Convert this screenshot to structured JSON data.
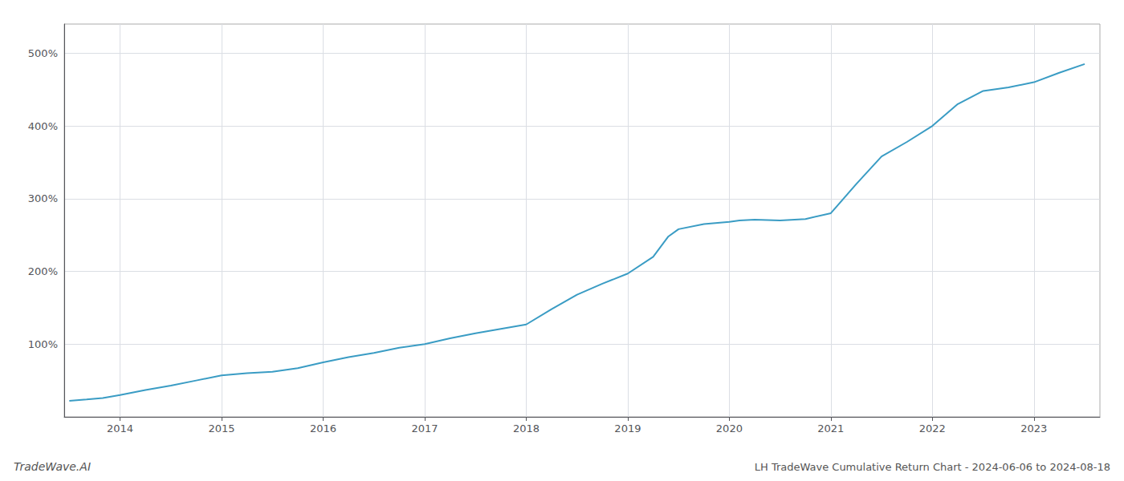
{
  "chart_data": {
    "type": "line",
    "title": "LH TradeWave Cumulative Return Chart - 2024-06-06 to 2024-08-18",
    "annotations": [
      {
        "text": "TradeWave.AI"
      }
    ],
    "x": [
      2013.5,
      2013.67,
      2013.83,
      2014.0,
      2014.25,
      2014.5,
      2014.75,
      2015.0,
      2015.25,
      2015.5,
      2015.75,
      2016.0,
      2016.25,
      2016.5,
      2016.75,
      2017.0,
      2017.25,
      2017.5,
      2017.75,
      2018.0,
      2018.25,
      2018.5,
      2018.75,
      2019.0,
      2019.25,
      2019.4,
      2019.5,
      2019.75,
      2020.0,
      2020.1,
      2020.25,
      2020.5,
      2020.75,
      2021.0,
      2021.25,
      2021.5,
      2021.75,
      2022.0,
      2022.25,
      2022.5,
      2022.75,
      2023.0,
      2023.25,
      2023.5
    ],
    "values": [
      22,
      24,
      26,
      30,
      37,
      43,
      50,
      57,
      60,
      62,
      67,
      75,
      82,
      88,
      95,
      100,
      108,
      115,
      121,
      127,
      148,
      168,
      183,
      197,
      220,
      248,
      258,
      265,
      268,
      270,
      271,
      270,
      272,
      280,
      320,
      358,
      378,
      400,
      430,
      448,
      453,
      460,
      473,
      485
    ],
    "color": "#3a9cc4",
    "xlim": [
      2013.45,
      2023.65
    ],
    "xticks": [
      2014,
      2015,
      2016,
      2017,
      2018,
      2019,
      2020,
      2021,
      2022,
      2023
    ],
    "ylim": [
      0,
      540
    ],
    "yticks": [
      {
        "value": 100,
        "label": "100%"
      },
      {
        "value": 200,
        "label": "200%"
      },
      {
        "value": 300,
        "label": "300%"
      },
      {
        "value": 400,
        "label": "400%"
      },
      {
        "value": 500,
        "label": "500%"
      }
    ],
    "grid": true
  }
}
